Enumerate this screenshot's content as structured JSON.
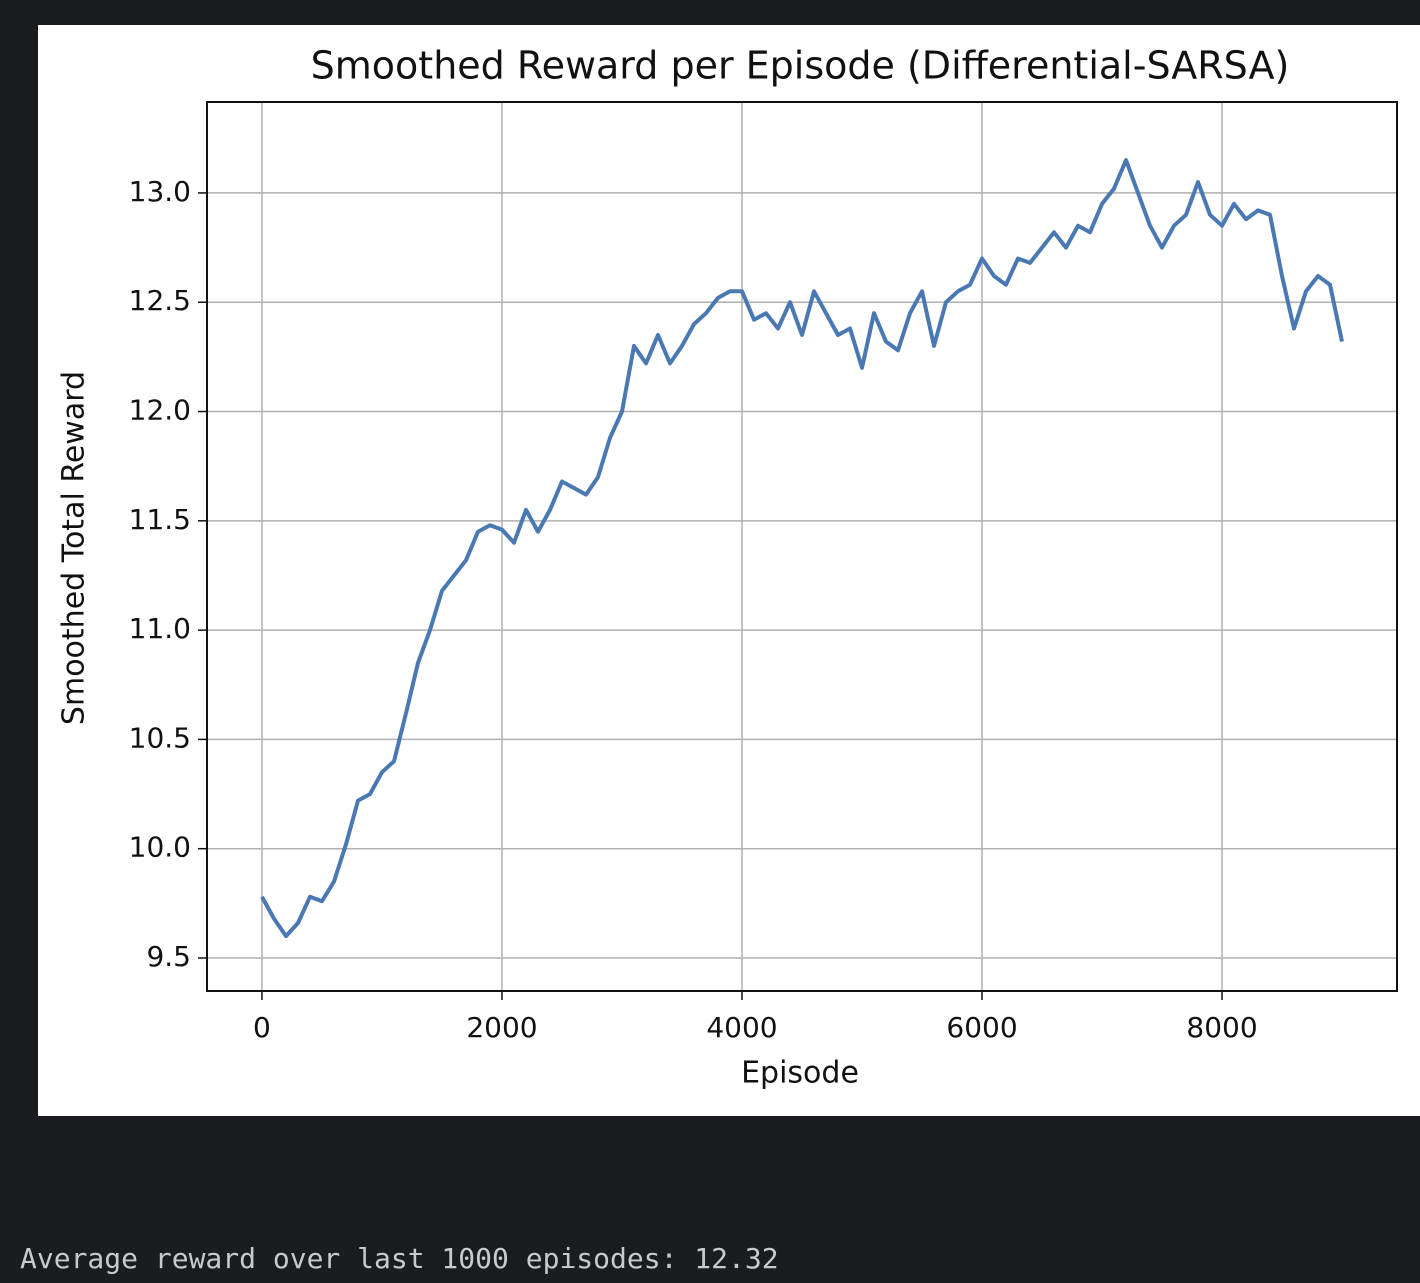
{
  "chart_data": {
    "type": "line",
    "title": "Smoothed Reward per Episode (Differential-SARSA)",
    "xlabel": "Episode",
    "ylabel": "Smoothed Total Reward",
    "x": [
      0,
      100,
      200,
      300,
      400,
      500,
      600,
      700,
      800,
      900,
      1000,
      1100,
      1200,
      1300,
      1400,
      1500,
      1600,
      1700,
      1800,
      1900,
      2000,
      2100,
      2200,
      2300,
      2400,
      2500,
      2600,
      2700,
      2800,
      2900,
      3000,
      3100,
      3200,
      3300,
      3400,
      3500,
      3600,
      3700,
      3800,
      3900,
      4000,
      4100,
      4200,
      4300,
      4400,
      4500,
      4600,
      4700,
      4800,
      4900,
      5000,
      5100,
      5200,
      5300,
      5400,
      5500,
      5600,
      5700,
      5800,
      5900,
      6000,
      6100,
      6200,
      6300,
      6400,
      6500,
      6600,
      6700,
      6800,
      6900,
      7000,
      7100,
      7200,
      7300,
      7400,
      7500,
      7600,
      7700,
      7800,
      7900,
      8000,
      8100,
      8200,
      8300,
      8400,
      8500,
      8600,
      8700,
      8800,
      8900,
      9000
    ],
    "values": [
      9.78,
      9.68,
      9.6,
      9.66,
      9.78,
      9.76,
      9.85,
      10.02,
      10.22,
      10.25,
      10.35,
      10.4,
      10.62,
      10.85,
      11.0,
      11.18,
      11.25,
      11.32,
      11.45,
      11.48,
      11.46,
      11.4,
      11.55,
      11.45,
      11.55,
      11.68,
      11.65,
      11.62,
      11.7,
      11.88,
      12.0,
      12.3,
      12.22,
      12.35,
      12.22,
      12.3,
      12.4,
      12.45,
      12.52,
      12.55,
      12.55,
      12.42,
      12.45,
      12.38,
      12.5,
      12.35,
      12.55,
      12.45,
      12.35,
      12.38,
      12.2,
      12.45,
      12.32,
      12.28,
      12.45,
      12.55,
      12.3,
      12.5,
      12.55,
      12.58,
      12.7,
      12.62,
      12.58,
      12.7,
      12.68,
      12.75,
      12.82,
      12.75,
      12.85,
      12.82,
      12.95,
      13.02,
      13.15,
      13.0,
      12.85,
      12.75,
      12.85,
      12.9,
      13.05,
      12.9,
      12.85,
      12.95,
      12.88,
      12.92,
      12.9,
      12.62,
      12.38,
      12.55,
      12.62,
      12.58,
      12.32
    ],
    "color": "#4a78b3",
    "xlim": [
      -458,
      9458
    ],
    "ylim": [
      9.349,
      13.416
    ],
    "xticks": [
      0,
      2000,
      4000,
      6000,
      8000
    ],
    "yticks": [
      9.5,
      {
        "value": 10,
        "label": "10.0"
      },
      10.5,
      {
        "value": 11,
        "label": "11.0"
      },
      11.5,
      {
        "value": 12,
        "label": "12.0"
      },
      12.5,
      {
        "value": 13,
        "label": "13.0"
      }
    ],
    "grid": true
  },
  "output_text": "Average reward over last 1000 episodes: 12.32"
}
